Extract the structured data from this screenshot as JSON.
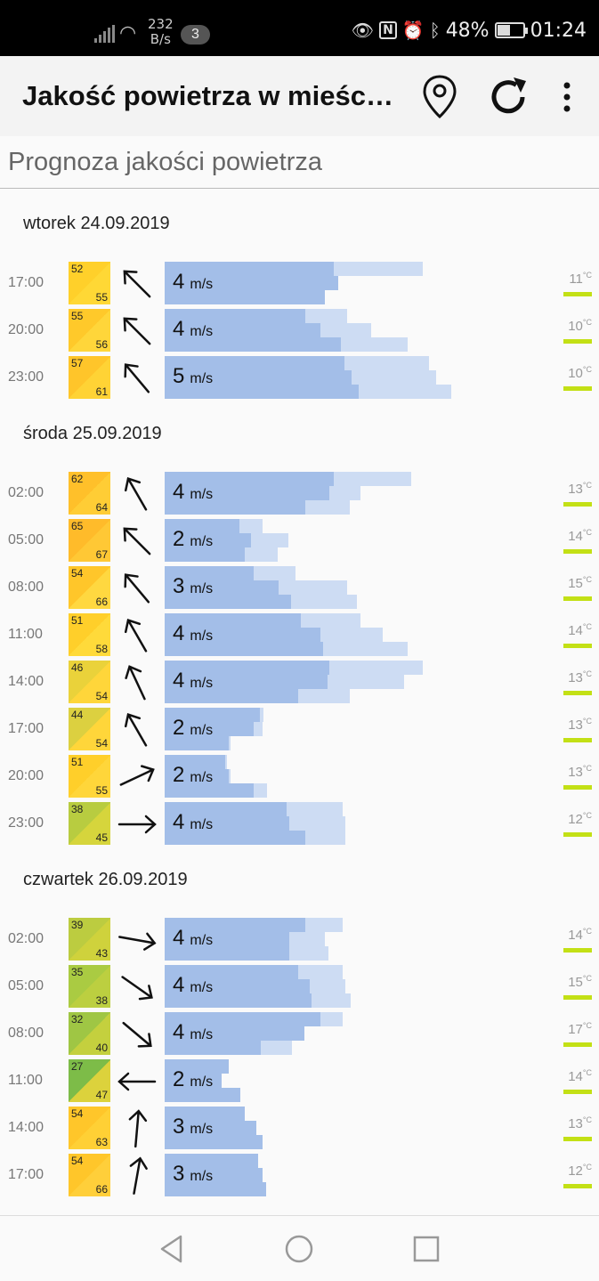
{
  "status_bar": {
    "speed_value": "232",
    "speed_unit": "B/s",
    "notifications": "3",
    "battery": "48%",
    "time": "01:24"
  },
  "app_bar": {
    "title": "Jakość powietrza w mieści…"
  },
  "subheader": "Prognoza jakości powietrza",
  "wind_unit": "m/s",
  "temp_unit": "°C",
  "colors": {
    "accent_temp": "#c3e015",
    "bar_dark": "#a3bee8",
    "bar_light": "#cddcf3"
  },
  "days": [
    {
      "label": "wtorek 24.09.2019",
      "rows": [
        {
          "time": "17:00",
          "aq_top": "52",
          "aq_bottom": "55",
          "wind_dir": 315,
          "speed": "4",
          "temp": "11",
          "bars": [
            [
              190,
              290
            ],
            [
              195,
              140
            ],
            [
              180,
              138
            ]
          ],
          "aq_color": [
            "#ffd02a",
            "#ffd835"
          ]
        },
        {
          "time": "20:00",
          "aq_top": "55",
          "aq_bottom": "56",
          "wind_dir": 315,
          "speed": "4",
          "temp": "10",
          "bars": [
            [
              158,
              205
            ],
            [
              175,
              232
            ],
            [
              198,
              273
            ]
          ],
          "aq_color": [
            "#ffc92a",
            "#ffd63a"
          ]
        },
        {
          "time": "23:00",
          "aq_top": "57",
          "aq_bottom": "61",
          "wind_dir": 320,
          "speed": "5",
          "temp": "10",
          "bars": [
            [
              202,
              297
            ],
            [
              210,
              305
            ],
            [
              218,
              322
            ]
          ],
          "aq_color": [
            "#ffc52a",
            "#ffd335"
          ]
        }
      ]
    },
    {
      "label": "środa 25.09.2019",
      "rows": [
        {
          "time": "02:00",
          "aq_top": "62",
          "aq_bottom": "64",
          "wind_dir": 330,
          "speed": "4",
          "temp": "13",
          "bars": [
            [
              190,
              277
            ],
            [
              185,
              220
            ],
            [
              158,
              208
            ]
          ],
          "aq_color": [
            "#ffc02a",
            "#ffcd35"
          ]
        },
        {
          "time": "05:00",
          "aq_top": "65",
          "aq_bottom": "67",
          "wind_dir": 315,
          "speed": "2",
          "temp": "14",
          "bars": [
            [
              84,
              110
            ],
            [
              97,
              139
            ],
            [
              90,
              127
            ]
          ],
          "aq_color": [
            "#ffbb2a",
            "#ffc835"
          ]
        },
        {
          "time": "08:00",
          "aq_top": "54",
          "aq_bottom": "66",
          "wind_dir": 320,
          "speed": "3",
          "temp": "15",
          "bars": [
            [
              100,
              147
            ],
            [
              128,
              205
            ],
            [
              142,
              216
            ]
          ],
          "aq_color": [
            "#ffc62a",
            "#ffd840"
          ]
        },
        {
          "time": "11:00",
          "aq_top": "51",
          "aq_bottom": "58",
          "wind_dir": 330,
          "speed": "4",
          "temp": "14",
          "bars": [
            [
              153,
              220
            ],
            [
              175,
              245
            ],
            [
              178,
              273
            ]
          ],
          "aq_color": [
            "#ffcf2a",
            "#ffda3a"
          ]
        },
        {
          "time": "14:00",
          "aq_top": "46",
          "aq_bottom": "54",
          "wind_dir": 335,
          "speed": "4",
          "temp": "13",
          "bars": [
            [
              185,
              290
            ],
            [
              183,
              269
            ],
            [
              150,
              208
            ]
          ],
          "aq_color": [
            "#ead23a",
            "#ffd63a"
          ]
        },
        {
          "time": "17:00",
          "aq_top": "44",
          "aq_bottom": "54",
          "wind_dir": 330,
          "speed": "2",
          "temp": "13",
          "bars": [
            [
              107,
              111
            ],
            [
              100,
              110
            ],
            [
              72,
              74
            ]
          ],
          "aq_color": [
            "#dcd040",
            "#ffd63a"
          ]
        },
        {
          "time": "20:00",
          "aq_top": "51",
          "aq_bottom": "55",
          "wind_dir": 65,
          "speed": "2",
          "temp": "13",
          "bars": [
            [
              68,
              70
            ],
            [
              72,
              74
            ],
            [
              100,
              115
            ]
          ],
          "aq_color": [
            "#ffcf2a",
            "#ffd63a"
          ]
        },
        {
          "time": "23:00",
          "aq_top": "38",
          "aq_bottom": "45",
          "wind_dir": 90,
          "speed": "4",
          "temp": "12",
          "bars": [
            [
              137,
              200
            ],
            [
              140,
              203
            ],
            [
              158,
              203
            ]
          ],
          "aq_color": [
            "#b8cc40",
            "#d6d53c"
          ]
        }
      ]
    },
    {
      "label": "czwartek 26.09.2019",
      "rows": [
        {
          "time": "02:00",
          "aq_top": "39",
          "aq_bottom": "43",
          "wind_dir": 100,
          "speed": "4",
          "temp": "14",
          "bars": [
            [
              158,
              200
            ],
            [
              140,
              180
            ],
            [
              140,
              184
            ]
          ],
          "aq_color": [
            "#bccc40",
            "#cfd23c"
          ]
        },
        {
          "time": "05:00",
          "aq_top": "35",
          "aq_bottom": "38",
          "wind_dir": 125,
          "speed": "4",
          "temp": "15",
          "bars": [
            [
              150,
              200
            ],
            [
              163,
              203
            ],
            [
              165,
              209
            ]
          ],
          "aq_color": [
            "#aacb42",
            "#bccf40"
          ]
        },
        {
          "time": "08:00",
          "aq_top": "32",
          "aq_bottom": "40",
          "wind_dir": 130,
          "speed": "4",
          "temp": "17",
          "bars": [
            [
              175,
              200
            ],
            [
              157,
              157
            ],
            [
              108,
              143
            ]
          ],
          "aq_color": [
            "#9fc644",
            "#c4d03e"
          ]
        },
        {
          "time": "11:00",
          "aq_top": "27",
          "aq_bottom": "47",
          "wind_dir": 270,
          "speed": "2",
          "temp": "14",
          "bars": [
            [
              72,
              72
            ],
            [
              64,
              64
            ],
            [
              85,
              85
            ]
          ],
          "aq_color": [
            "#7dbc48",
            "#dcd23c"
          ]
        },
        {
          "time": "14:00",
          "aq_top": "54",
          "aq_bottom": "63",
          "wind_dir": 5,
          "speed": "3",
          "temp": "13",
          "bars": [
            [
              90,
              90
            ],
            [
              103,
              103
            ],
            [
              110,
              110
            ]
          ],
          "aq_color": [
            "#ffc62a",
            "#ffd035"
          ]
        },
        {
          "time": "17:00",
          "aq_top": "54",
          "aq_bottom": "66",
          "wind_dir": 10,
          "speed": "3",
          "temp": "12",
          "bars": [
            [
              105,
              105
            ],
            [
              110,
              110
            ],
            [
              114,
              114
            ]
          ],
          "aq_color": [
            "#ffc62a",
            "#ffcf3a"
          ]
        }
      ]
    }
  ]
}
